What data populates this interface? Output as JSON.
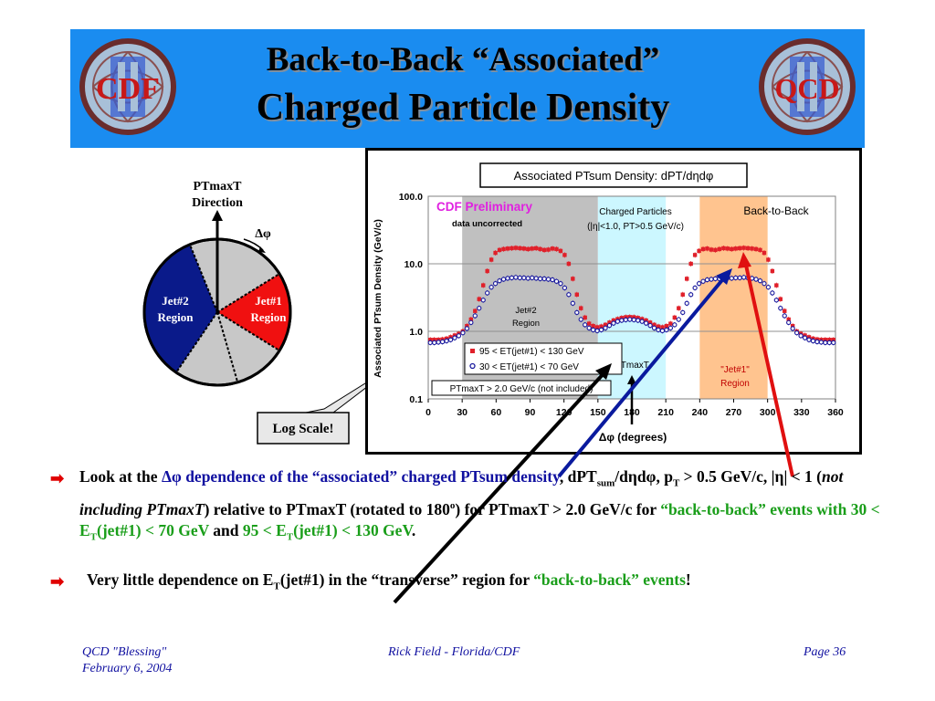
{
  "slide": {
    "title_line1": "Back-to-Back “Associated”",
    "title_line2": "Charged Particle Density",
    "logo_left": {
      "letters": "CDF",
      "numeral": "II"
    },
    "logo_right": {
      "letters": "QCD",
      "numeral": "II"
    }
  },
  "diagram": {
    "direction_label_1": "PTmaxT",
    "direction_label_2": "Direction",
    "dphi_label": "Δφ",
    "jet2_line1": "Jet#2",
    "jet2_line2": "Region",
    "jet1_line1": "Jet#1",
    "jet1_line2": "Region",
    "log_scale_callout": "Log Scale!"
  },
  "chart_data": {
    "type": "scatter",
    "title": "Associated PTsum Density: dPT/dηdφ",
    "xlabel": "Δφ (degrees)",
    "ylabel": "Associated PTsum Density (GeV/c)",
    "y_scale": "log",
    "xlim": [
      0,
      360
    ],
    "ylim": [
      0.1,
      100
    ],
    "x_ticks": [
      "0",
      "30",
      "60",
      "90",
      "120",
      "150",
      "180",
      "210",
      "240",
      "270",
      "300",
      "330",
      "360"
    ],
    "y_ticks": [
      "100.0",
      "10.0",
      "1.0",
      "0.1"
    ],
    "grid": "horizontal",
    "bands": [
      {
        "label": "Jet#2 Region",
        "x_range": [
          30,
          150
        ],
        "color": "#c0c0c0"
      },
      {
        "label": "Charged Particles",
        "x_range": [
          150,
          210
        ],
        "color": "#ccf7ff"
      },
      {
        "label": "Back-to-Back",
        "x_range": [
          240,
          300
        ],
        "color": "#ffc48f"
      }
    ],
    "annotations": {
      "preliminary": "CDF Preliminary",
      "uncorrected": "data uncorrected",
      "charged_particles": "Charged Particles",
      "cuts": "(|η|<1.0, PT>0.5 GeV/c)",
      "back_to_back": "Back-to-Back",
      "jet2_1": "Jet#2",
      "jet2_2": "Region",
      "jet1_1": "\"Jet#1\"",
      "jet1_2": "Region",
      "ptmaxt": "PTmaxT",
      "ptmaxt_note": "PTmaxT > 2.0 GeV/c (not included)"
    },
    "series": [
      {
        "name": "95 < ET(jet#1) < 130 GeV",
        "marker": "filled-square",
        "color": "#e0202a",
        "x": [
          1.8,
          5.4,
          9,
          12.6,
          16.2,
          19.8,
          23.4,
          27,
          30.6,
          34.2,
          37.8,
          41.4,
          45,
          48.6,
          52.2,
          55.8,
          59.4,
          63,
          66.6,
          70.2,
          73.8,
          77.4,
          81,
          84.6,
          88.2,
          91.8,
          95.4,
          99,
          102.6,
          106.2,
          109.8,
          113.4,
          117,
          120.6,
          124.2,
          127.8,
          131.4,
          135,
          138.6,
          142.2,
          145.8,
          149.4,
          153,
          156.6,
          160.2,
          163.8,
          167.4,
          171,
          174.6,
          178.2,
          181.8,
          185.4,
          189,
          192.6,
          196.2,
          199.8,
          203.4,
          207,
          210.6,
          214.2,
          217.8,
          221.4,
          225,
          228.6,
          232.2,
          235.8,
          239.4,
          243,
          246.6,
          250.2,
          253.8,
          257.4,
          261,
          264.6,
          268.2,
          271.8,
          275.4,
          279,
          282.6,
          286.2,
          289.8,
          293.4,
          297,
          300.6,
          304.2,
          307.8,
          311.4,
          315,
          318.6,
          322.2,
          325.8,
          329.4,
          333,
          336.6,
          340.2,
          343.8,
          347.4,
          351,
          354.6,
          358.2
        ],
        "y": [
          0.75,
          0.75,
          0.75,
          0.76,
          0.78,
          0.82,
          0.87,
          0.92,
          1.0,
          1.2,
          1.5,
          2.0,
          3.0,
          4.8,
          7.8,
          11.5,
          14.5,
          16.0,
          16.5,
          16.8,
          17.0,
          17.2,
          17.0,
          16.8,
          16.5,
          16.8,
          17.0,
          16.5,
          16.0,
          16.2,
          16.8,
          16.5,
          15.5,
          13.5,
          10.0,
          6.0,
          3.5,
          2.2,
          1.6,
          1.3,
          1.2,
          1.15,
          1.18,
          1.25,
          1.35,
          1.45,
          1.52,
          1.58,
          1.62,
          1.63,
          1.62,
          1.58,
          1.52,
          1.45,
          1.35,
          1.25,
          1.18,
          1.15,
          1.2,
          1.3,
          1.6,
          2.2,
          3.5,
          6.0,
          10.0,
          13.5,
          15.5,
          16.5,
          16.8,
          16.2,
          16.0,
          16.5,
          17.0,
          16.8,
          16.5,
          16.8,
          17.0,
          17.2,
          17.0,
          16.8,
          16.5,
          16.0,
          14.5,
          11.5,
          7.8,
          4.8,
          3.0,
          2.0,
          1.5,
          1.2,
          1.0,
          0.92,
          0.87,
          0.82,
          0.78,
          0.76,
          0.75,
          0.75,
          0.75,
          0.75
        ]
      },
      {
        "name": "30 < ET(jet#1) < 70 GeV",
        "marker": "open-circle",
        "color": "#1a1a9e",
        "x": [
          1.8,
          5.4,
          9,
          12.6,
          16.2,
          19.8,
          23.4,
          27,
          30.6,
          34.2,
          37.8,
          41.4,
          45,
          48.6,
          52.2,
          55.8,
          59.4,
          63,
          66.6,
          70.2,
          73.8,
          77.4,
          81,
          84.6,
          88.2,
          91.8,
          95.4,
          99,
          102.6,
          106.2,
          109.8,
          113.4,
          117,
          120.6,
          124.2,
          127.8,
          131.4,
          135,
          138.6,
          142.2,
          145.8,
          149.4,
          153,
          156.6,
          160.2,
          163.8,
          167.4,
          171,
          174.6,
          178.2,
          181.8,
          185.4,
          189,
          192.6,
          196.2,
          199.8,
          203.4,
          207,
          210.6,
          214.2,
          217.8,
          221.4,
          225,
          228.6,
          232.2,
          235.8,
          239.4,
          243,
          246.6,
          250.2,
          253.8,
          257.4,
          261,
          264.6,
          268.2,
          271.8,
          275.4,
          279,
          282.6,
          286.2,
          289.8,
          293.4,
          297,
          300.6,
          304.2,
          307.8,
          311.4,
          315,
          318.6,
          322.2,
          325.8,
          329.4,
          333,
          336.6,
          340.2,
          343.8,
          347.4,
          351,
          354.6,
          358.2
        ],
        "y": [
          0.68,
          0.68,
          0.69,
          0.7,
          0.72,
          0.75,
          0.8,
          0.86,
          0.95,
          1.1,
          1.35,
          1.7,
          2.2,
          2.9,
          3.7,
          4.5,
          5.1,
          5.6,
          5.9,
          6.1,
          6.2,
          6.3,
          6.2,
          6.2,
          6.1,
          6.2,
          6.1,
          6.0,
          6.0,
          5.9,
          5.8,
          5.5,
          5.1,
          4.4,
          3.5,
          2.6,
          1.9,
          1.5,
          1.25,
          1.12,
          1.05,
          1.02,
          1.05,
          1.12,
          1.22,
          1.32,
          1.4,
          1.45,
          1.48,
          1.5,
          1.48,
          1.45,
          1.4,
          1.32,
          1.22,
          1.12,
          1.05,
          1.02,
          1.05,
          1.12,
          1.25,
          1.5,
          1.9,
          2.6,
          3.5,
          4.4,
          5.1,
          5.5,
          5.8,
          5.9,
          6.0,
          6.0,
          6.1,
          6.2,
          6.1,
          6.2,
          6.2,
          6.3,
          6.2,
          6.1,
          5.9,
          5.6,
          5.1,
          4.5,
          3.7,
          2.9,
          2.2,
          1.7,
          1.35,
          1.1,
          0.95,
          0.86,
          0.8,
          0.75,
          0.72,
          0.7,
          0.69,
          0.68,
          0.68,
          0.68
        ]
      }
    ]
  },
  "bullets": {
    "b1_p1": "Look at the ",
    "b1_p2": "Δφ dependence of the “associated” charged PTsum density",
    "b1_p3": ", dPT",
    "b1_p3_sub": "sum",
    "b1_p4": "/dηdφ, p",
    "b1_p4_sub": "T",
    "b1_p5": " > 0.5 GeV/c, |η| < 1 (",
    "b1_p6": "not including PTmaxT",
    "b1_p7": ") relative to PTmaxT (rotated to 180",
    "b1_p7_sup": "o",
    "b1_p8": ") for PTmaxT > 2.0 GeV/c for ",
    "b1_p9": "“back-to-back” events with 30 < E",
    "b1_p9_sub": "T",
    "b1_p10": "(jet#1) < 70 GeV",
    "b1_p11": " and ",
    "b1_p12": "95 < E",
    "b1_p12_sub": "T",
    "b1_p13": "(jet#1) < 130 GeV",
    "b1_p14": ".",
    "b2_p1": "Very little dependence on E",
    "b2_p1_sub": "T",
    "b2_p2": "(jet#1) in the “transverse” region for ",
    "b2_p3": "“back-to-back” events",
    "b2_p4": "!"
  },
  "footer": {
    "left_line1": "QCD \"Blessing\"",
    "left_line2": "February 6, 2004",
    "center": "Rick Field - Florida/CDF",
    "right": "Page 36"
  }
}
